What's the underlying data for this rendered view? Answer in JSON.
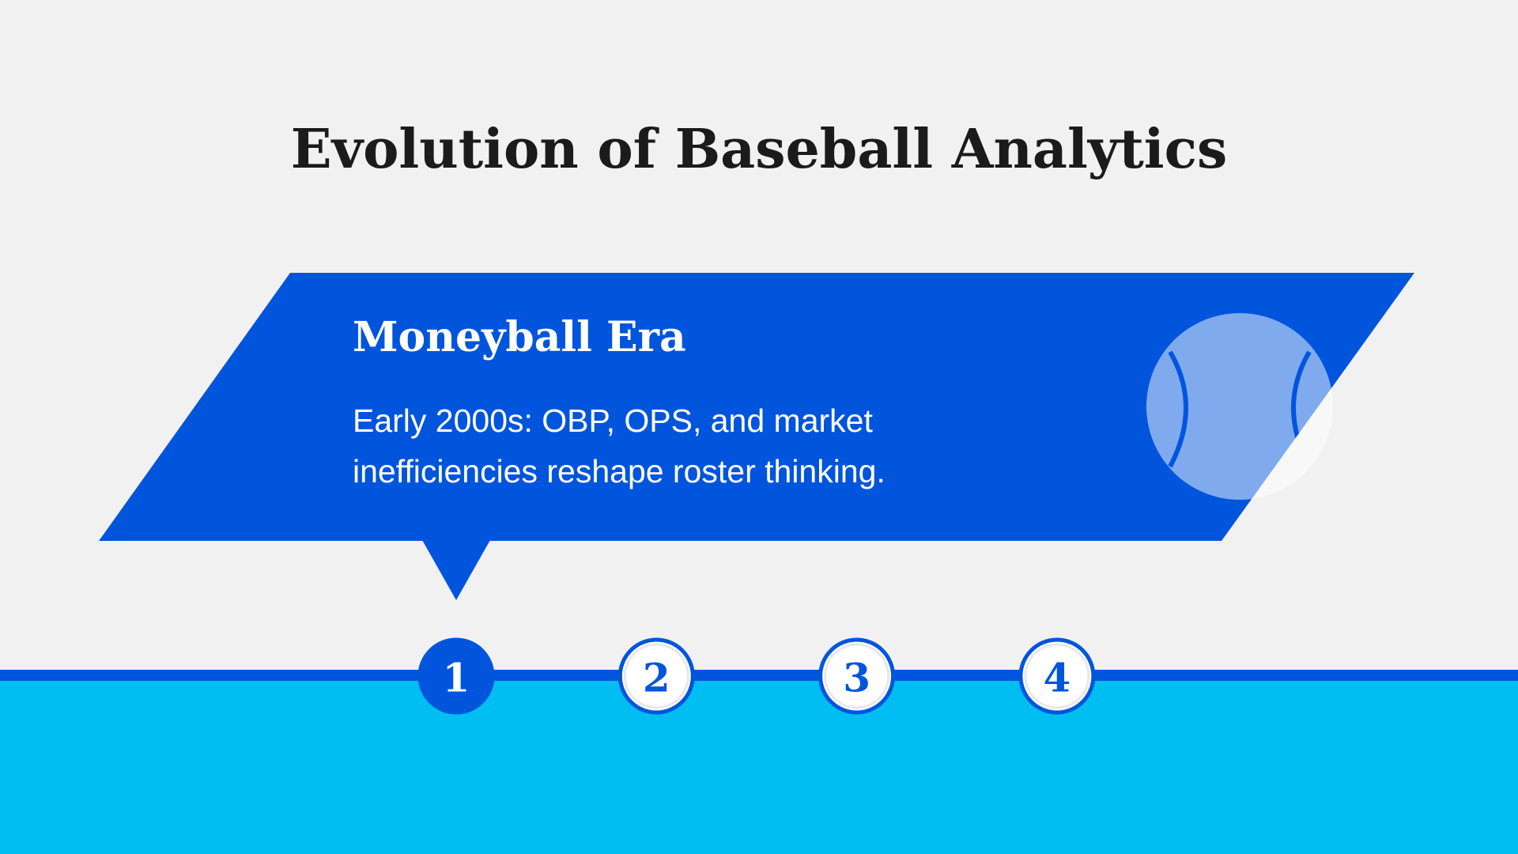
{
  "title": "Evolution of Baseball Analytics",
  "card": {
    "heading": "Moneyball Era",
    "body": [
      "Early 2000s: OBP, OPS, and market",
      "inefficiencies reshape roster thinking."
    ]
  },
  "steps": [
    "1",
    "2",
    "3",
    "4"
  ],
  "active_step": 0
}
